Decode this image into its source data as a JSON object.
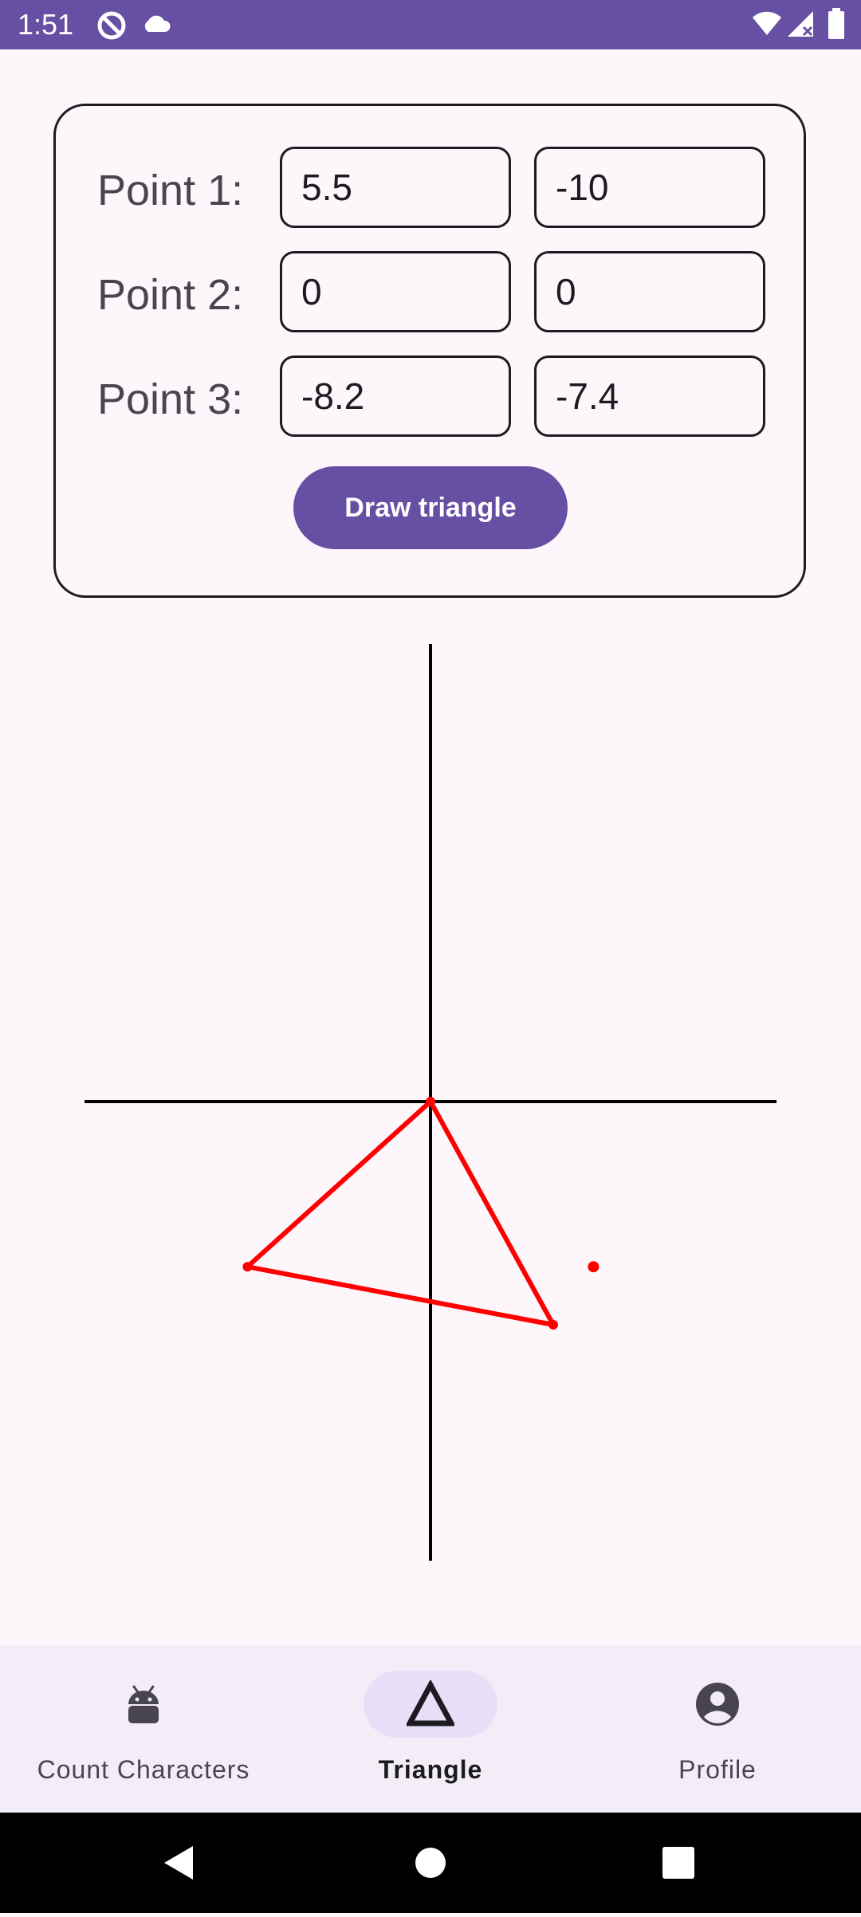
{
  "status_bar": {
    "time": "1:51",
    "left_icons": [
      "do-not-disturb-icon",
      "cloud-icon"
    ],
    "right_icons": [
      "wifi-icon",
      "cellular-signal-icon",
      "battery-icon"
    ]
  },
  "form": {
    "points": [
      {
        "label": "Point 1:",
        "x": "5.5",
        "y": "-10"
      },
      {
        "label": "Point 2:",
        "x": "0",
        "y": "0"
      },
      {
        "label": "Point 3:",
        "x": "-8.2",
        "y": "-7.4"
      }
    ],
    "draw_button": "Draw triangle"
  },
  "plot": {
    "type": "triangle-plot",
    "triangle_color": "#FF0000",
    "axis_color": "#000000",
    "triangle_points": [
      [
        5.5,
        -10
      ],
      [
        0,
        0
      ],
      [
        -8.2,
        -7.4
      ]
    ],
    "extra_point": [
      7.3,
      -7.4
    ]
  },
  "bottom_nav": {
    "items": [
      {
        "label": "Count Characters",
        "icon": "android-icon",
        "selected": false
      },
      {
        "label": "Triangle",
        "icon": "triangle-icon",
        "selected": true
      },
      {
        "label": "Profile",
        "icon": "account-circle-icon",
        "selected": false
      }
    ]
  },
  "system_nav": {
    "buttons": [
      "back-icon",
      "home-icon",
      "recents-icon"
    ]
  },
  "colors": {
    "primary": "#6750A4",
    "background": "#FDF7FC",
    "nav_background": "#F3EDF7",
    "nav_indicator": "#E8DEF8"
  }
}
